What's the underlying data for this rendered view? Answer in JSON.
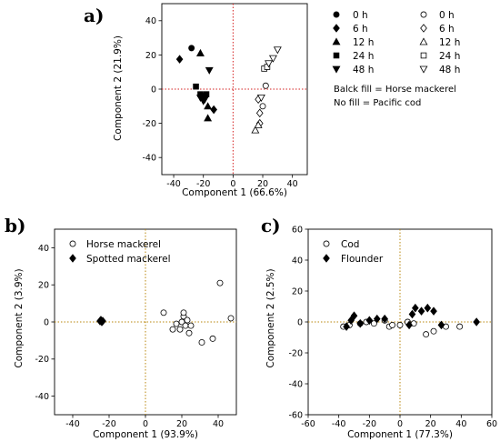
{
  "chart_data": [
    {
      "panel_label": "a)",
      "type": "scatter",
      "xlabel": "Component 1 (66.6%)",
      "ylabel": "Component 2 (21.9%)",
      "xlim": [
        -48,
        50
      ],
      "ylim": [
        -50,
        50
      ],
      "xticks": [
        "-40",
        "-20",
        "0",
        "20",
        "40"
      ],
      "yticks": [
        "-40",
        "-20",
        "0",
        "20",
        "40"
      ],
      "xtick_values": [
        -40,
        -20,
        0,
        20,
        40
      ],
      "ytick_values": [
        -40,
        -20,
        0,
        20,
        40
      ],
      "reference_lines": {
        "x": 0,
        "y": 0,
        "color": "#d42020",
        "style": "dotted"
      },
      "legend_placement": "right, outside",
      "series": [
        {
          "name": "0 h",
          "marker": "circle",
          "fill": "black",
          "points": [
            [
              -28,
              24
            ]
          ]
        },
        {
          "name": "6 h",
          "marker": "diamond",
          "fill": "black",
          "points": [
            [
              -36,
              17.5
            ],
            [
              -13,
              -12
            ]
          ]
        },
        {
          "name": "12 h",
          "marker": "triangle-up",
          "fill": "black",
          "points": [
            [
              -22,
              21
            ],
            [
              -17,
              -10
            ],
            [
              -17,
              -17
            ]
          ]
        },
        {
          "name": "24 h",
          "marker": "square",
          "fill": "black",
          "points": [
            [
              -25,
              1.5
            ],
            [
              -22,
              -3
            ],
            [
              -20,
              -4
            ],
            [
              -18,
              -3
            ]
          ]
        },
        {
          "name": "48 h",
          "marker": "triangle-down",
          "fill": "black",
          "points": [
            [
              -16,
              11
            ],
            [
              -22,
              -5
            ],
            [
              -20,
              -7
            ],
            [
              -19,
              -6
            ]
          ]
        },
        {
          "name": "0 h",
          "marker": "circle",
          "fill": "none",
          "points": [
            [
              20,
              -10
            ],
            [
              22,
              2
            ]
          ]
        },
        {
          "name": "6 h",
          "marker": "diamond",
          "fill": "none",
          "points": [
            [
              18,
              -20
            ],
            [
              18,
              -14
            ],
            [
              17,
              -6
            ]
          ]
        },
        {
          "name": "12 h",
          "marker": "triangle-up",
          "fill": "none",
          "points": [
            [
              15,
              -24
            ],
            [
              17,
              -21
            ]
          ]
        },
        {
          "name": "24 h",
          "marker": "square",
          "fill": "none",
          "points": [
            [
              21,
              12
            ],
            [
              23,
              13
            ]
          ]
        },
        {
          "name": "48 h",
          "marker": "triangle-down",
          "fill": "none",
          "points": [
            [
              24,
              15
            ],
            [
              27,
              18
            ],
            [
              30,
              23
            ],
            [
              19,
              -5
            ]
          ]
        }
      ],
      "notes": [
        "Balck fill = Horse mackerel",
        "No fill = Pacific cod"
      ]
    },
    {
      "panel_label": "b)",
      "type": "scatter",
      "xlabel": "Component 1 (93.9%)",
      "ylabel": "Component 2 (3.9%)",
      "xlim": [
        -50,
        50
      ],
      "ylim": [
        -50,
        50
      ],
      "xticks": [
        "-40",
        "-20",
        "0",
        "20",
        "40"
      ],
      "yticks": [
        "-40",
        "-20",
        "0",
        "20",
        "40"
      ],
      "xtick_values": [
        -40,
        -20,
        0,
        20,
        40
      ],
      "ytick_values": [
        -40,
        -20,
        0,
        20,
        40
      ],
      "reference_lines": {
        "x": 0,
        "y": 0,
        "color": "#b8860b",
        "style": "dotted"
      },
      "legend_placement": "upper left",
      "series": [
        {
          "name": "Horse mackerel",
          "marker": "circle",
          "fill": "none",
          "points": [
            [
              10,
              5
            ],
            [
              15,
              -4
            ],
            [
              17,
              -1
            ],
            [
              19,
              -4
            ],
            [
              20,
              0
            ],
            [
              21,
              3
            ],
            [
              21,
              5
            ],
            [
              22,
              -2
            ],
            [
              23,
              1
            ],
            [
              24,
              -6
            ],
            [
              25,
              -2
            ],
            [
              31,
              -11
            ],
            [
              37,
              -9
            ],
            [
              41,
              21
            ],
            [
              47,
              2
            ]
          ]
        },
        {
          "name": "Spotted mackerel",
          "marker": "diamond",
          "fill": "black",
          "points": [
            [
              -25,
              0.5
            ],
            [
              -24,
              0
            ],
            [
              -24.5,
              1
            ],
            [
              -23.5,
              0.5
            ]
          ]
        }
      ]
    },
    {
      "panel_label": "c)",
      "type": "scatter",
      "xlabel": "Component 1 (77.3%)",
      "ylabel": "Component 2 (2.5%)",
      "xlim": [
        -60,
        60
      ],
      "ylim": [
        -60,
        60
      ],
      "xticks": [
        "-60",
        "-40",
        "-20",
        "0",
        "20",
        "40",
        "60"
      ],
      "yticks": [
        "-60",
        "-40",
        "-20",
        "0",
        "20",
        "40",
        "60"
      ],
      "xtick_values": [
        -60,
        -40,
        -20,
        0,
        20,
        40,
        60
      ],
      "ytick_values": [
        -60,
        -40,
        -20,
        0,
        20,
        40,
        60
      ],
      "reference_lines": {
        "x": 0,
        "y": 0,
        "color": "#b8860b",
        "style": "dotted"
      },
      "legend_placement": "upper left",
      "series": [
        {
          "name": "Cod",
          "marker": "circle",
          "fill": "none",
          "points": [
            [
              -37,
              -3
            ],
            [
              -33,
              -2
            ],
            [
              -26,
              -1
            ],
            [
              -22,
              0
            ],
            [
              -17,
              -1
            ],
            [
              -10,
              1
            ],
            [
              -7,
              -3
            ],
            [
              -5,
              -2
            ],
            [
              0,
              -2
            ],
            [
              5,
              0
            ],
            [
              9,
              -1
            ],
            [
              17,
              -8
            ],
            [
              22,
              -6
            ],
            [
              30,
              -3
            ],
            [
              39,
              -3
            ]
          ]
        },
        {
          "name": "Flounder",
          "marker": "diamond",
          "fill": "black",
          "points": [
            [
              -35,
              -3
            ],
            [
              -32,
              1
            ],
            [
              -30,
              4
            ],
            [
              -26,
              -1
            ],
            [
              -20,
              1
            ],
            [
              -15,
              2
            ],
            [
              -10,
              2
            ],
            [
              6,
              -2
            ],
            [
              8,
              5
            ],
            [
              10,
              9
            ],
            [
              14,
              7
            ],
            [
              18,
              9
            ],
            [
              22,
              7
            ],
            [
              27,
              -2
            ],
            [
              50,
              0
            ]
          ]
        }
      ]
    }
  ]
}
